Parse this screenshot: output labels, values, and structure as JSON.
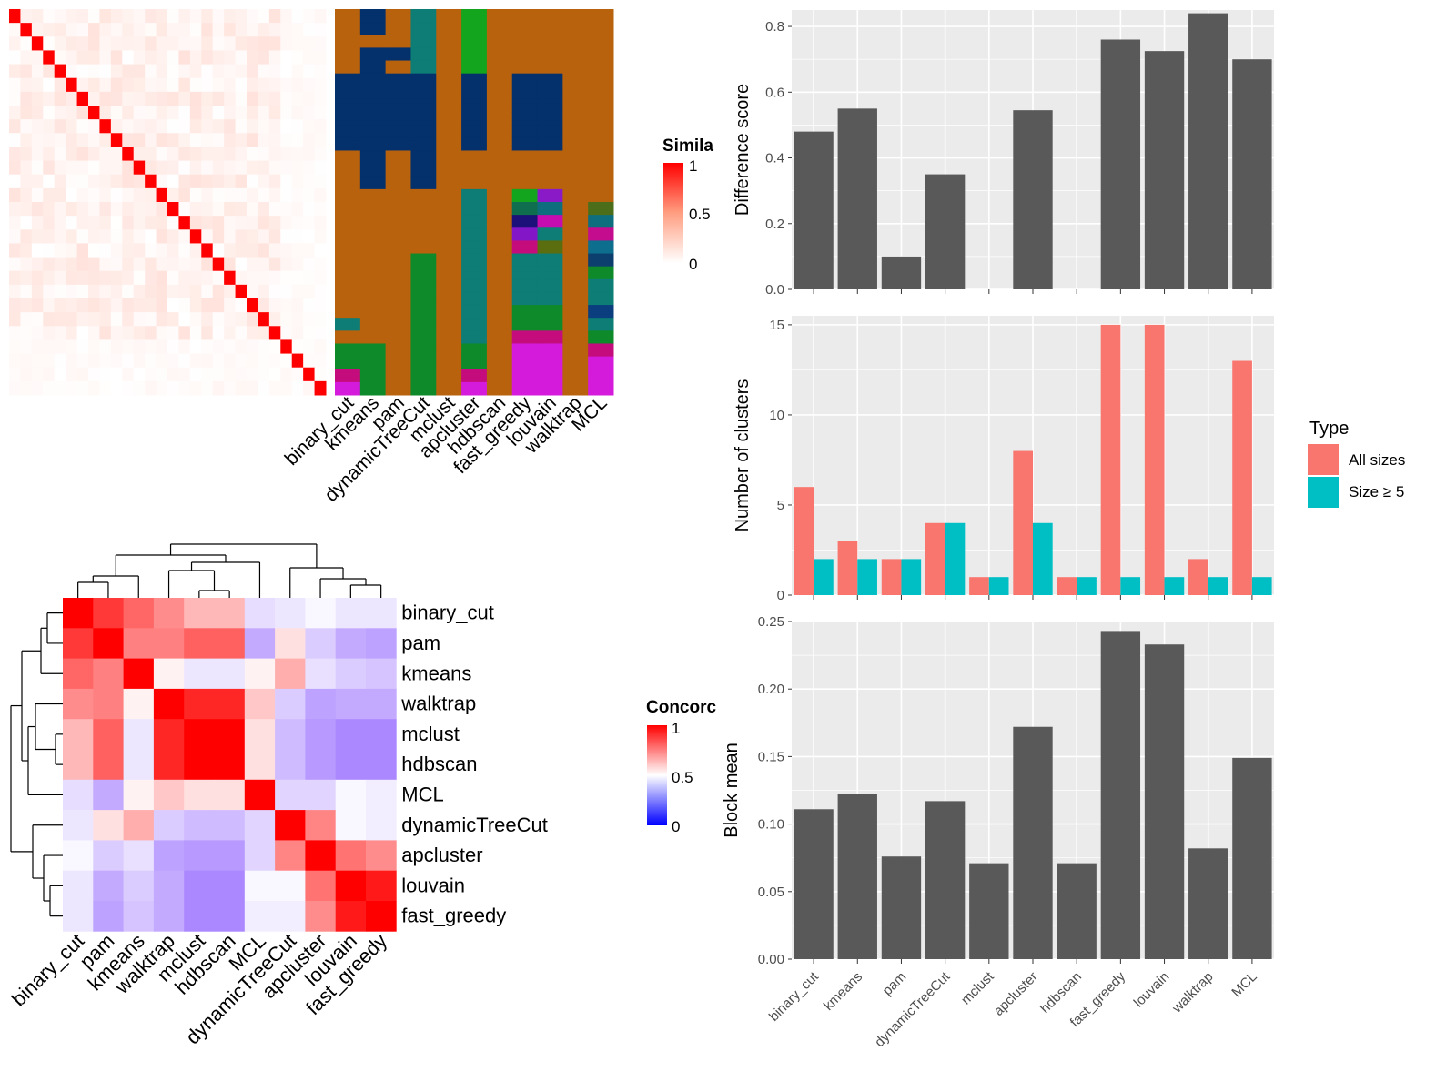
{
  "colors": {
    "panel_bg": "#EBEBEB",
    "grid": "#FFFFFF",
    "bar_dark": "#595959",
    "all_sizes": "#F8766D",
    "size_ge5": "#00BFC4",
    "sim_high": "#FF0000",
    "sim_mid": "#FF9E81",
    "sim_low": "#FFFFFF",
    "conc_high": "#FF0000",
    "conc_mid": "#FFFFFF",
    "conc_low": "#0000FF"
  },
  "similarity_legend": {
    "title": "Simila",
    "ticks": [
      "1",
      "0.5",
      "0"
    ]
  },
  "concordance_legend": {
    "title": "Concorc",
    "ticks": [
      "1",
      "0.5",
      "0"
    ]
  },
  "type_legend": {
    "title": "Type",
    "items": [
      "All sizes",
      "Size ≥ 5"
    ]
  },
  "top_left_methods": [
    "binary_cut",
    "kmeans",
    "pam",
    "dynamicTreeCut",
    "mclust",
    "apcluster",
    "hdbscan",
    "fast_greedy",
    "louvain",
    "walktrap",
    "MCL"
  ],
  "concordance_methods": [
    "binary_cut",
    "pam",
    "kmeans",
    "walktrap",
    "mclust",
    "hdbscan",
    "MCL",
    "dynamicTreeCut",
    "apcluster",
    "louvain",
    "fast_greedy"
  ],
  "chart_data": [
    {
      "type": "bar",
      "categories": [
        "binary_cut",
        "kmeans",
        "pam",
        "dynamicTreeCut",
        "mclust",
        "apcluster",
        "hdbscan",
        "fast_greedy",
        "louvain",
        "walktrap",
        "MCL"
      ],
      "values": [
        0.48,
        0.55,
        0.1,
        0.35,
        0.0,
        0.545,
        0.0,
        0.76,
        0.725,
        0.84,
        0.7
      ],
      "ylabel": "Difference score",
      "ylim": [
        0,
        0.85
      ],
      "yticks": [
        "0.0",
        "0.2",
        "0.4",
        "0.6",
        "0.8"
      ]
    },
    {
      "type": "bar",
      "categories": [
        "binary_cut",
        "kmeans",
        "pam",
        "dynamicTreeCut",
        "mclust",
        "apcluster",
        "hdbscan",
        "fast_greedy",
        "louvain",
        "walktrap",
        "MCL"
      ],
      "series": [
        {
          "name": "All sizes",
          "values": [
            6,
            3,
            2,
            4,
            1,
            8,
            1,
            15,
            15,
            2,
            13
          ]
        },
        {
          "name": "Size ≥ 5",
          "values": [
            2,
            2,
            2,
            4,
            1,
            4,
            1,
            1,
            1,
            1,
            1
          ]
        }
      ],
      "ylabel": "Number of clusters",
      "ylim": [
        0,
        15.5
      ],
      "yticks": [
        "0",
        "5",
        "10",
        "15"
      ]
    },
    {
      "type": "bar",
      "categories": [
        "binary_cut",
        "kmeans",
        "pam",
        "dynamicTreeCut",
        "mclust",
        "apcluster",
        "hdbscan",
        "fast_greedy",
        "louvain",
        "walktrap",
        "MCL"
      ],
      "values": [
        0.111,
        0.122,
        0.076,
        0.117,
        0.071,
        0.172,
        0.071,
        0.243,
        0.233,
        0.082,
        0.149
      ],
      "ylabel": "Block mean",
      "ylim": [
        0,
        0.25
      ],
      "yticks": [
        "0.00",
        "0.05",
        "0.10",
        "0.15",
        "0.20",
        "0.25"
      ]
    }
  ]
}
